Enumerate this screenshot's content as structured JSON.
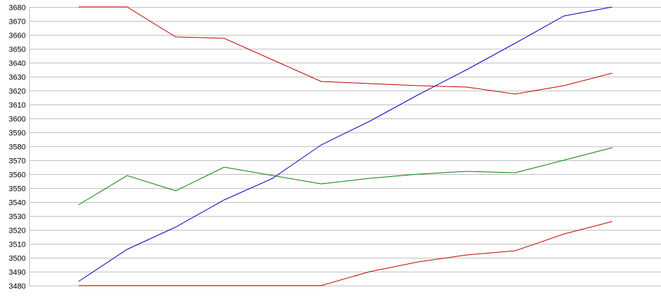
{
  "chart_data": {
    "type": "line",
    "title": "",
    "xlabel": "",
    "ylabel": "",
    "ylim": [
      3480,
      3680
    ],
    "yticks": [
      3480,
      3490,
      3500,
      3510,
      3520,
      3530,
      3540,
      3550,
      3560,
      3570,
      3580,
      3590,
      3600,
      3610,
      3620,
      3630,
      3640,
      3650,
      3660,
      3670,
      3680
    ],
    "grid": true,
    "x": [
      1,
      2,
      3,
      4,
      5,
      6,
      7,
      8,
      9,
      10,
      11,
      12
    ],
    "series": [
      {
        "name": "red-upper",
        "color": "#c00000",
        "values": [
          3680,
          3680,
          3658.5,
          3657.5,
          3642,
          3626.5,
          3625,
          3623.5,
          3622.5,
          3617.5,
          3623.5,
          3632.5
        ]
      },
      {
        "name": "blue",
        "color": "#0000c0",
        "values": [
          3483,
          3506,
          3522,
          3541.5,
          3557,
          3581,
          3598,
          3617,
          3635,
          3654,
          3673.5,
          3680
        ]
      },
      {
        "name": "green",
        "color": "#008000",
        "values": [
          3538,
          3559,
          3548,
          3565,
          3559,
          3553,
          3557,
          3560,
          3562,
          3561,
          3570,
          3579
        ]
      },
      {
        "name": "red-lower",
        "color": "#c00000",
        "values": [
          3480,
          3480,
          3480,
          3480,
          3480,
          3480,
          3490,
          3497,
          3502,
          3505,
          3517,
          3526
        ]
      }
    ],
    "grid_color": "#c0c0c0"
  }
}
